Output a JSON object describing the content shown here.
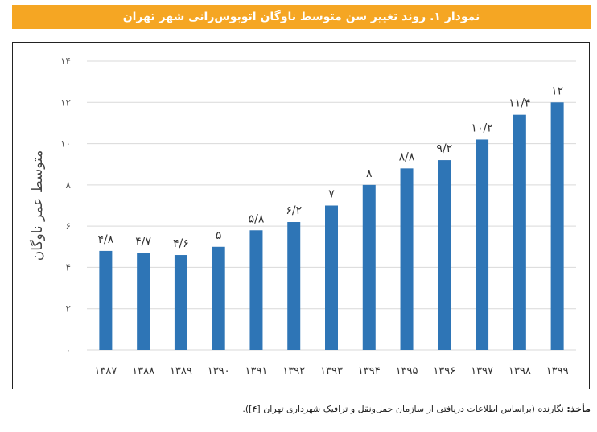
{
  "title": "نمودار ۱. روند تغییر سن متوسط ناوگان اتوبوس‌رانی شهر تهران",
  "source": {
    "label": "مأخذ:",
    "text": "نگارنده (براساس اطلاعات دریافتی از سازمان حمل‌ونقل و ترافیک شهرداری تهران [۴])."
  },
  "colors": {
    "bar": "#2e75b6",
    "grid": "#d9d9d9",
    "title_bg": "#f5a623"
  },
  "chart_data": {
    "type": "bar",
    "title": "",
    "xlabel": "",
    "ylabel": "متوسط عمر ناوگان",
    "ylim": [
      0,
      14
    ],
    "yticks": [
      0,
      2,
      4,
      6,
      8,
      10,
      12,
      14
    ],
    "ytick_labels": [
      "۰",
      "۲",
      "۴",
      "۶",
      "۸",
      "۱۰",
      "۱۲",
      "۱۴"
    ],
    "grid": true,
    "categories": [
      "۱۳۸۷",
      "۱۳۸۸",
      "۱۳۸۹",
      "۱۳۹۰",
      "۱۳۹۱",
      "۱۳۹۲",
      "۱۳۹۳",
      "۱۳۹۴",
      "۱۳۹۵",
      "۱۳۹۶",
      "۱۳۹۷",
      "۱۳۹۸",
      "۱۳۹۹"
    ],
    "values": [
      4.8,
      4.7,
      4.6,
      5,
      5.8,
      6.2,
      7,
      8,
      8.8,
      9.2,
      10.2,
      11.4,
      12
    ],
    "data_labels": [
      "۴/۸",
      "۴/۷",
      "۴/۶",
      "۵",
      "۵/۸",
      "۶/۲",
      "۷",
      "۸",
      "۸/۸",
      "۹/۲",
      "۱۰/۲",
      "۱۱/۴",
      "۱۲"
    ]
  }
}
